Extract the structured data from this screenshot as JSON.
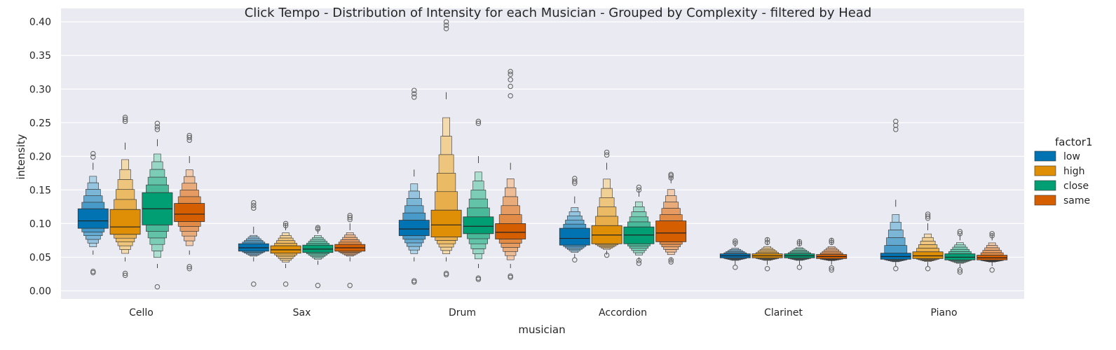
{
  "chart_data": {
    "type": "boxen",
    "title": "Click Tempo - Distribution of Intensity for each Musician - Grouped by Complexity - filtered by Head",
    "xlabel": "musician",
    "ylabel": "intensity",
    "ylim": [
      -0.012,
      0.42
    ],
    "y_ticks": [
      "0.00",
      "0.05",
      "0.10",
      "0.15",
      "0.20",
      "0.25",
      "0.30",
      "0.35",
      "0.40"
    ],
    "grid": true,
    "legend_placement": "right",
    "legend_title": "factor1",
    "categories": [
      "Cello",
      "Sax",
      "Drum",
      "Accordion",
      "Clarinet",
      "Piano"
    ],
    "series": [
      {
        "name": "low",
        "color": "#0173b2",
        "values": [
          {
            "min": 0.06,
            "q1": 0.093,
            "median": 0.104,
            "q3": 0.122,
            "max": 0.18,
            "outliers": [
              0.027,
              0.029,
              0.199,
              0.204
            ]
          },
          {
            "min": 0.05,
            "q1": 0.059,
            "median": 0.064,
            "q3": 0.07,
            "max": 0.085,
            "outliers": [
              0.01,
              0.123,
              0.127,
              0.131
            ]
          },
          {
            "min": 0.05,
            "q1": 0.082,
            "median": 0.092,
            "q3": 0.105,
            "max": 0.17,
            "outliers": [
              0.013,
              0.015,
              0.288,
              0.293,
              0.298
            ]
          },
          {
            "min": 0.055,
            "q1": 0.068,
            "median": 0.078,
            "q3": 0.093,
            "max": 0.13,
            "outliers": [
              0.046,
              0.16,
              0.163,
              0.167
            ]
          },
          {
            "min": 0.045,
            "q1": 0.049,
            "median": 0.052,
            "q3": 0.055,
            "max": 0.065,
            "outliers": [
              0.035,
              0.071,
              0.074
            ]
          },
          {
            "min": 0.043,
            "q1": 0.047,
            "median": 0.051,
            "q3": 0.056,
            "max": 0.125,
            "outliers": [
              0.033,
              0.24,
              0.246,
              0.252
            ]
          }
        ]
      },
      {
        "name": "high",
        "color": "#de8f05",
        "values": [
          {
            "min": 0.05,
            "q1": 0.084,
            "median": 0.095,
            "q3": 0.121,
            "max": 0.21,
            "outliers": [
              0.023,
              0.026,
              0.252,
              0.255,
              0.258
            ]
          },
          {
            "min": 0.04,
            "q1": 0.056,
            "median": 0.061,
            "q3": 0.067,
            "max": 0.09,
            "outliers": [
              0.01,
              0.097,
              0.1
            ]
          },
          {
            "min": 0.05,
            "q1": 0.08,
            "median": 0.098,
            "q3": 0.12,
            "max": 0.285,
            "outliers": [
              0.024,
              0.026,
              0.39,
              0.395,
              0.4
            ]
          },
          {
            "min": 0.06,
            "q1": 0.07,
            "median": 0.083,
            "q3": 0.097,
            "max": 0.18,
            "outliers": [
              0.053,
              0.202,
              0.206
            ]
          },
          {
            "min": 0.045,
            "q1": 0.049,
            "median": 0.052,
            "q3": 0.055,
            "max": 0.068,
            "outliers": [
              0.033,
              0.072,
              0.076
            ]
          },
          {
            "min": 0.043,
            "q1": 0.048,
            "median": 0.052,
            "q3": 0.058,
            "max": 0.09,
            "outliers": [
              0.033,
              0.108,
              0.111,
              0.114
            ]
          }
        ]
      },
      {
        "name": "close",
        "color": "#029e73",
        "values": [
          {
            "min": 0.04,
            "q1": 0.098,
            "median": 0.122,
            "q3": 0.146,
            "max": 0.215,
            "outliers": [
              0.006,
              0.24,
              0.244,
              0.249
            ]
          },
          {
            "min": 0.045,
            "q1": 0.057,
            "median": 0.062,
            "q3": 0.068,
            "max": 0.085,
            "outliers": [
              0.008,
              0.092,
              0.094
            ]
          },
          {
            "min": 0.04,
            "q1": 0.085,
            "median": 0.096,
            "q3": 0.11,
            "max": 0.19,
            "outliers": [
              0.017,
              0.019,
              0.249,
              0.252
            ]
          },
          {
            "min": 0.05,
            "q1": 0.07,
            "median": 0.083,
            "q3": 0.095,
            "max": 0.14,
            "outliers": [
              0.041,
              0.045,
              0.15,
              0.154
            ]
          },
          {
            "min": 0.045,
            "q1": 0.049,
            "median": 0.052,
            "q3": 0.055,
            "max": 0.066,
            "outliers": [
              0.035,
              0.07,
              0.073
            ]
          },
          {
            "min": 0.04,
            "q1": 0.046,
            "median": 0.05,
            "q3": 0.055,
            "max": 0.075,
            "outliers": [
              0.028,
              0.031,
              0.085,
              0.088
            ]
          }
        ]
      },
      {
        "name": "same",
        "color": "#d55e00",
        "values": [
          {
            "min": 0.06,
            "q1": 0.103,
            "median": 0.114,
            "q3": 0.13,
            "max": 0.19,
            "outliers": [
              0.033,
              0.036,
              0.224,
              0.228,
              0.231
            ]
          },
          {
            "min": 0.05,
            "q1": 0.059,
            "median": 0.064,
            "q3": 0.069,
            "max": 0.09,
            "outliers": [
              0.008,
              0.106,
              0.109,
              0.112
            ]
          },
          {
            "min": 0.04,
            "q1": 0.077,
            "median": 0.087,
            "q3": 0.1,
            "max": 0.18,
            "outliers": [
              0.02,
              0.022,
              0.29,
              0.304,
              0.314,
              0.322,
              0.326
            ]
          },
          {
            "min": 0.05,
            "q1": 0.073,
            "median": 0.086,
            "q3": 0.104,
            "max": 0.16,
            "outliers": [
              0.043,
              0.046,
              0.168,
              0.171,
              0.173
            ]
          },
          {
            "min": 0.045,
            "q1": 0.048,
            "median": 0.051,
            "q3": 0.054,
            "max": 0.068,
            "outliers": [
              0.031,
              0.034,
              0.072,
              0.075
            ]
          },
          {
            "min": 0.043,
            "q1": 0.046,
            "median": 0.049,
            "q3": 0.053,
            "max": 0.075,
            "outliers": [
              0.031,
              0.082,
              0.085
            ]
          }
        ]
      }
    ]
  }
}
